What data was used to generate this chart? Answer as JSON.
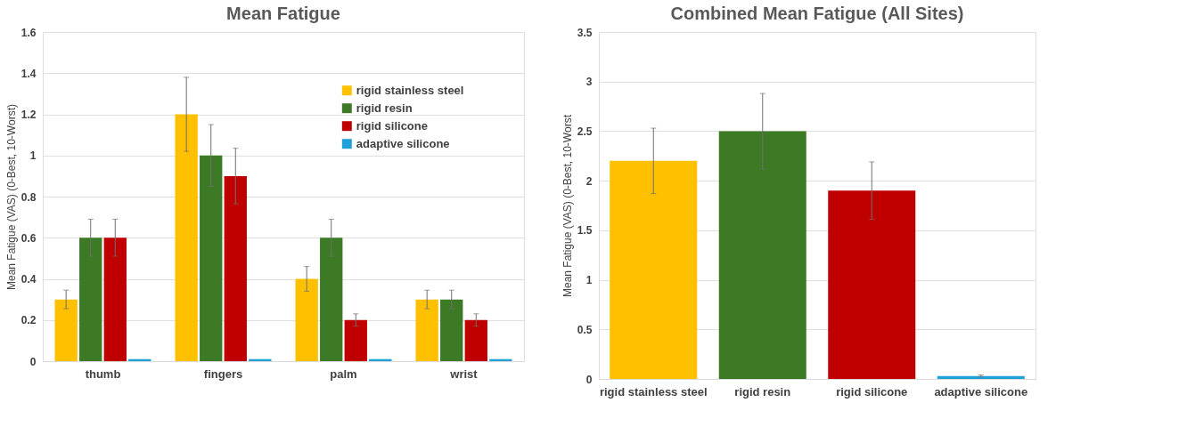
{
  "chart_data": [
    {
      "type": "bar",
      "title": "Mean Fatigue",
      "ylabel": "Mean Fatigue (VAS) (0-Best, 10-Worst)",
      "categories": [
        "thumb",
        "fingers",
        "palm",
        "wrist"
      ],
      "ylim": [
        0,
        1.6
      ],
      "yticks": [
        0,
        0.2,
        0.4,
        0.6,
        0.8,
        1,
        1.2,
        1.4,
        1.6
      ],
      "grid": "y",
      "legend": "top right",
      "series": [
        {
          "name": "rigid stainless steel",
          "color": "#ffc000",
          "values": [
            0.3,
            1.2,
            0.4,
            0.3
          ],
          "errors": [
            0.045,
            0.18,
            0.06,
            0.045
          ]
        },
        {
          "name": "rigid resin",
          "color": "#3c7a26",
          "values": [
            0.6,
            1.0,
            0.6,
            0.3
          ],
          "errors": [
            0.09,
            0.15,
            0.09,
            0.045
          ]
        },
        {
          "name": "rigid silicone",
          "color": "#c00000",
          "values": [
            0.6,
            0.9,
            0.2,
            0.2
          ],
          "errors": [
            0.09,
            0.135,
            0.03,
            0.03
          ]
        },
        {
          "name": "adaptive silicone",
          "color": "#1ea0d8",
          "values": [
            0.01,
            0.01,
            0.01,
            0.01
          ],
          "errors": [
            null,
            null,
            null,
            null
          ]
        }
      ]
    },
    {
      "type": "bar",
      "title": "Combined Mean Fatigue (All Sites)",
      "ylabel": "Mean Fatigue (VAS) (0-Best, 10-Worst",
      "categories": [
        "rigid stainless steel",
        "rigid resin",
        "rigid silicone",
        "adaptive silicone"
      ],
      "ylim": [
        0,
        3.5
      ],
      "yticks": [
        0,
        0.5,
        1,
        1.5,
        2,
        2.5,
        3,
        3.5
      ],
      "grid": "y",
      "values": [
        2.2,
        2.5,
        1.9,
        0.03
      ],
      "colors": [
        "#ffc000",
        "#3c7a26",
        "#c00000",
        "#1ea0d8"
      ],
      "errors": [
        0.33,
        0.38,
        0.29,
        0.01
      ]
    }
  ]
}
